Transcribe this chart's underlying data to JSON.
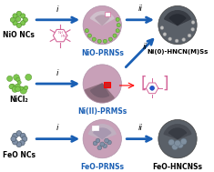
{
  "bg_color": "#ffffff",
  "arrow_color": "#1a5fb4",
  "arrow_lw": 2.0,
  "pink_color": "#d4679a",
  "pink_light": "#e8a0c0",
  "sphere_pink": "#c8a0b8",
  "sphere_dark": "#5a6068",
  "sphere_mid": "#888090",
  "green_nc_color": "#7ec850",
  "green_nc_dark": "#5aaa28",
  "grey_nc_color": "#8090a0",
  "grey_nc_dark": "#607080",
  "labels": {
    "NiO_NCs": "NiO NCs",
    "NiCl2": "NiCl₂",
    "FeO_NCs": "FeO NCs",
    "NiO_PRNSs": "NiO-PRNSs",
    "Ni_II_PRMSs": "Ni(II)-PRMSs",
    "FeO_PRNSs": "FeO-PRNSs",
    "Ni0_HNCNMSs": "Ni(0)-HNCN(M)Ss",
    "FeO_HNCNSs": "FeO-HNCNSs"
  },
  "label_fontsize": 5.5,
  "step_i": "i",
  "step_ii": "ii",
  "step_fontsize": 6.5,
  "title_fontsize": 5.0
}
